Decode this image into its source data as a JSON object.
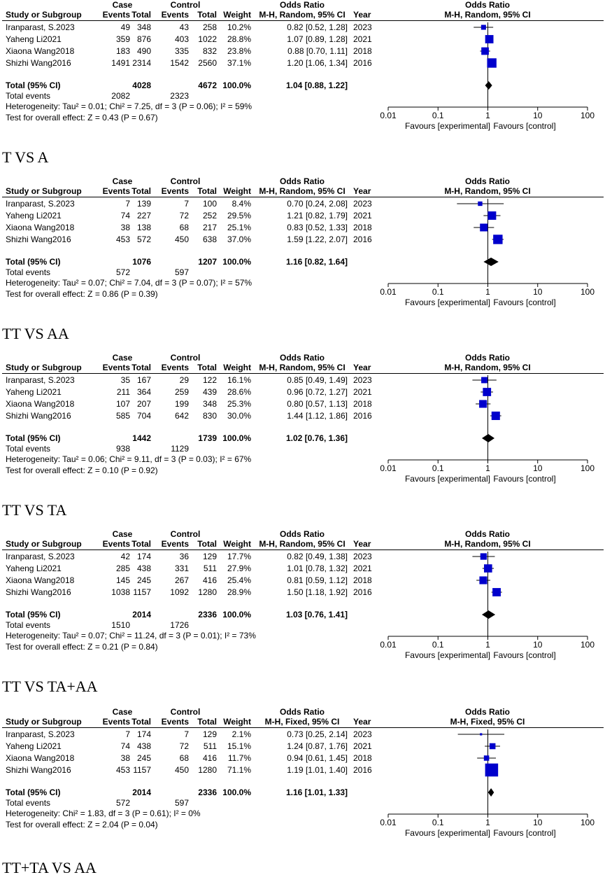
{
  "header": {
    "case": "Case",
    "control": "Control",
    "study": "Study or Subgroup",
    "events": "Events",
    "total": "Total",
    "weight": "Weight",
    "odds_ratio": "Odds Ratio",
    "year": "Year"
  },
  "common": {
    "total_label": "Total (95% CI)",
    "total_events_label": "Total events",
    "tick_labels": [
      "0.01",
      "0.1",
      "1",
      "10",
      "100"
    ],
    "favours_left": "Favours [experimental]",
    "favours_right": "Favours [control]"
  },
  "chart_data": [
    {
      "type": "forest",
      "caption": "T VS A",
      "method": "M-H, Random, 95% CI",
      "x_scale": "log",
      "xlim": [
        0.01,
        100
      ],
      "studies": [
        {
          "name": "Iranparast, S.2023",
          "case_events": "49",
          "case_total": "348",
          "control_events": "43",
          "control_total": "258",
          "weight": "10.2%",
          "or_text": "0.82 [0.52, 1.28]",
          "year": "2023",
          "or": 0.82,
          "lo": 0.52,
          "hi": 1.28,
          "w": 10.2
        },
        {
          "name": "Yaheng Li2021",
          "case_events": "359",
          "case_total": "876",
          "control_events": "403",
          "control_total": "1022",
          "weight": "28.8%",
          "or_text": "1.07 [0.89, 1.28]",
          "year": "2021",
          "or": 1.07,
          "lo": 0.89,
          "hi": 1.28,
          "w": 28.8
        },
        {
          "name": "Xiaona Wang2018",
          "case_events": "183",
          "case_total": "490",
          "control_events": "335",
          "control_total": "832",
          "weight": "23.8%",
          "or_text": "0.88 [0.70, 1.11]",
          "year": "2018",
          "or": 0.88,
          "lo": 0.7,
          "hi": 1.11,
          "w": 23.8
        },
        {
          "name": "Shizhi Wang2016",
          "case_events": "1491",
          "case_total": "2314",
          "control_events": "1542",
          "control_total": "2560",
          "weight": "37.1%",
          "or_text": "1.20 [1.06, 1.34]",
          "year": "2016",
          "or": 1.2,
          "lo": 1.06,
          "hi": 1.34,
          "w": 37.1
        }
      ],
      "total": {
        "case_total": "4028",
        "control_total": "4672",
        "weight": "100.0%",
        "or_text": "1.04 [0.88, 1.22]",
        "or": 1.04,
        "lo": 0.88,
        "hi": 1.22
      },
      "total_events": {
        "case": "2082",
        "control": "2323"
      },
      "heterogeneity": "Heterogeneity: Tau² = 0.01; Chi² = 7.25, df = 3 (P = 0.06); I² = 59%",
      "overall_effect": "Test for overall effect: Z = 0.43 (P = 0.67)"
    },
    {
      "type": "forest",
      "caption": "TT VS AA",
      "method": "M-H, Random, 95% CI",
      "x_scale": "log",
      "xlim": [
        0.01,
        100
      ],
      "studies": [
        {
          "name": "Iranparast, S.2023",
          "case_events": "7",
          "case_total": "139",
          "control_events": "7",
          "control_total": "100",
          "weight": "8.4%",
          "or_text": "0.70 [0.24, 2.08]",
          "year": "2023",
          "or": 0.7,
          "lo": 0.24,
          "hi": 2.08,
          "w": 8.4
        },
        {
          "name": "Yaheng Li2021",
          "case_events": "74",
          "case_total": "227",
          "control_events": "72",
          "control_total": "252",
          "weight": "29.5%",
          "or_text": "1.21 [0.82, 1.79]",
          "year": "2021",
          "or": 1.21,
          "lo": 0.82,
          "hi": 1.79,
          "w": 29.5
        },
        {
          "name": "Xiaona Wang2018",
          "case_events": "38",
          "case_total": "138",
          "control_events": "68",
          "control_total": "217",
          "weight": "25.1%",
          "or_text": "0.83 [0.52, 1.33]",
          "year": "2018",
          "or": 0.83,
          "lo": 0.52,
          "hi": 1.33,
          "w": 25.1
        },
        {
          "name": "Shizhi Wang2016",
          "case_events": "453",
          "case_total": "572",
          "control_events": "450",
          "control_total": "638",
          "weight": "37.0%",
          "or_text": "1.59 [1.22, 2.07]",
          "year": "2016",
          "or": 1.59,
          "lo": 1.22,
          "hi": 2.07,
          "w": 37.0
        }
      ],
      "total": {
        "case_total": "1076",
        "control_total": "1207",
        "weight": "100.0%",
        "or_text": "1.16 [0.82, 1.64]",
        "or": 1.16,
        "lo": 0.82,
        "hi": 1.64
      },
      "total_events": {
        "case": "572",
        "control": "597"
      },
      "heterogeneity": "Heterogeneity: Tau² = 0.07; Chi² = 7.04, df = 3 (P = 0.07); I² = 57%",
      "overall_effect": "Test for overall effect: Z = 0.86 (P = 0.39)"
    },
    {
      "type": "forest",
      "caption": "TT VS TA",
      "method": "M-H, Random, 95% CI",
      "x_scale": "log",
      "xlim": [
        0.01,
        100
      ],
      "studies": [
        {
          "name": "Iranparast, S.2023",
          "case_events": "35",
          "case_total": "167",
          "control_events": "29",
          "control_total": "122",
          "weight": "16.1%",
          "or_text": "0.85 [0.49, 1.49]",
          "year": "2023",
          "or": 0.85,
          "lo": 0.49,
          "hi": 1.49,
          "w": 16.1
        },
        {
          "name": "Yaheng Li2021",
          "case_events": "211",
          "case_total": "364",
          "control_events": "259",
          "control_total": "439",
          "weight": "28.6%",
          "or_text": "0.96 [0.72, 1.27]",
          "year": "2021",
          "or": 0.96,
          "lo": 0.72,
          "hi": 1.27,
          "w": 28.6
        },
        {
          "name": "Xiaona Wang2018",
          "case_events": "107",
          "case_total": "207",
          "control_events": "199",
          "control_total": "348",
          "weight": "25.3%",
          "or_text": "0.80 [0.57, 1.13]",
          "year": "2018",
          "or": 0.8,
          "lo": 0.57,
          "hi": 1.13,
          "w": 25.3
        },
        {
          "name": "Shizhi Wang2016",
          "case_events": "585",
          "case_total": "704",
          "control_events": "642",
          "control_total": "830",
          "weight": "30.0%",
          "or_text": "1.44 [1.12, 1.86]",
          "year": "2016",
          "or": 1.44,
          "lo": 1.12,
          "hi": 1.86,
          "w": 30.0
        }
      ],
      "total": {
        "case_total": "1442",
        "control_total": "1739",
        "weight": "100.0%",
        "or_text": "1.02 [0.76, 1.36]",
        "or": 1.02,
        "lo": 0.76,
        "hi": 1.36
      },
      "total_events": {
        "case": "938",
        "control": "1129"
      },
      "heterogeneity": "Heterogeneity: Tau² = 0.06; Chi² = 9.11, df = 3 (P = 0.03); I² = 67%",
      "overall_effect": "Test for overall effect: Z = 0.10 (P = 0.92)"
    },
    {
      "type": "forest",
      "caption": "TT VS TA+AA",
      "method": "M-H, Random, 95% CI",
      "x_scale": "log",
      "xlim": [
        0.01,
        100
      ],
      "studies": [
        {
          "name": "Iranparast, S.2023",
          "case_events": "42",
          "case_total": "174",
          "control_events": "36",
          "control_total": "129",
          "weight": "17.7%",
          "or_text": "0.82 [0.49, 1.38]",
          "year": "2023",
          "or": 0.82,
          "lo": 0.49,
          "hi": 1.38,
          "w": 17.7
        },
        {
          "name": "Yaheng Li2021",
          "case_events": "285",
          "case_total": "438",
          "control_events": "331",
          "control_total": "511",
          "weight": "27.9%",
          "or_text": "1.01 [0.78, 1.32]",
          "year": "2021",
          "or": 1.01,
          "lo": 0.78,
          "hi": 1.32,
          "w": 27.9
        },
        {
          "name": "Xiaona Wang2018",
          "case_events": "145",
          "case_total": "245",
          "control_events": "267",
          "control_total": "416",
          "weight": "25.4%",
          "or_text": "0.81 [0.59, 1.12]",
          "year": "2018",
          "or": 0.81,
          "lo": 0.59,
          "hi": 1.12,
          "w": 25.4
        },
        {
          "name": "Shizhi Wang2016",
          "case_events": "1038",
          "case_total": "1157",
          "control_events": "1092",
          "control_total": "1280",
          "weight": "28.9%",
          "or_text": "1.50 [1.18, 1.92]",
          "year": "2016",
          "or": 1.5,
          "lo": 1.18,
          "hi": 1.92,
          "w": 28.9
        }
      ],
      "total": {
        "case_total": "2014",
        "control_total": "2336",
        "weight": "100.0%",
        "or_text": "1.03 [0.76, 1.41]",
        "or": 1.03,
        "lo": 0.76,
        "hi": 1.41
      },
      "total_events": {
        "case": "1510",
        "control": "1726"
      },
      "heterogeneity": "Heterogeneity: Tau² = 0.07; Chi² = 11.24, df = 3 (P = 0.01); I² = 73%",
      "overall_effect": "Test for overall effect: Z = 0.21 (P = 0.84)"
    },
    {
      "type": "forest",
      "caption": "TT+TA VS AA",
      "method": "M-H, Fixed, 95% CI",
      "x_scale": "log",
      "xlim": [
        0.01,
        100
      ],
      "studies": [
        {
          "name": "Iranparast, S.2023",
          "case_events": "7",
          "case_total": "174",
          "control_events": "7",
          "control_total": "129",
          "weight": "2.1%",
          "or_text": "0.73 [0.25, 2.14]",
          "year": "2023",
          "or": 0.73,
          "lo": 0.25,
          "hi": 2.14,
          "w": 2.1
        },
        {
          "name": "Yaheng Li2021",
          "case_events": "74",
          "case_total": "438",
          "control_events": "72",
          "control_total": "511",
          "weight": "15.1%",
          "or_text": "1.24 [0.87, 1.76]",
          "year": "2021",
          "or": 1.24,
          "lo": 0.87,
          "hi": 1.76,
          "w": 15.1
        },
        {
          "name": "Xiaona Wang2018",
          "case_events": "38",
          "case_total": "245",
          "control_events": "68",
          "control_total": "416",
          "weight": "11.7%",
          "or_text": "0.94 [0.61, 1.45]",
          "year": "2018",
          "or": 0.94,
          "lo": 0.61,
          "hi": 1.45,
          "w": 11.7
        },
        {
          "name": "Shizhi Wang2016",
          "case_events": "453",
          "case_total": "1157",
          "control_events": "450",
          "control_total": "1280",
          "weight": "71.1%",
          "or_text": "1.19 [1.01, 1.40]",
          "year": "2016",
          "or": 1.19,
          "lo": 1.01,
          "hi": 1.4,
          "w": 71.1
        }
      ],
      "total": {
        "case_total": "2014",
        "control_total": "2336",
        "weight": "100.0%",
        "or_text": "1.16 [1.01, 1.33]",
        "or": 1.16,
        "lo": 1.01,
        "hi": 1.33
      },
      "total_events": {
        "case": "572",
        "control": "597"
      },
      "heterogeneity": "Heterogeneity: Chi² = 1.83, df = 3 (P = 0.61); I² = 0%",
      "overall_effect": "Test for overall effect: Z = 2.04 (P = 0.04)"
    }
  ],
  "style": {
    "square_color": "#0000cc",
    "diamond_color": "#000000"
  }
}
